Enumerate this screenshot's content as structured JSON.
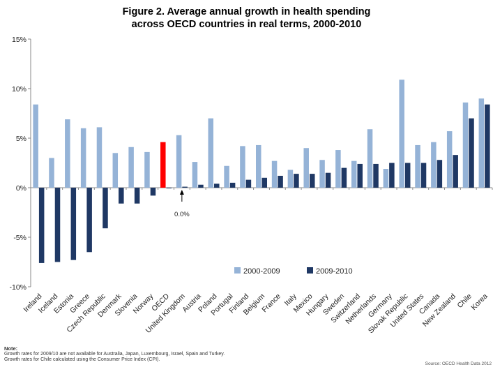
{
  "title_line1": "Figure 2. Average annual growth in health spending",
  "title_line2": "across OECD countries in real terms, 2000-2010",
  "notes": {
    "heading": "Note:",
    "line1": "Growth rates for 2009/10 are not available for Australia, Japan, Luxembourg, Israel, Spain and Turkey.",
    "line2": "Growth rates for Chile calculated using the Consumer Price Index (CPI)."
  },
  "source": "Source: OECD Health Data 2012",
  "chart_data": {
    "type": "bar",
    "y_ticks": [
      "15%",
      "10%",
      "5%",
      "0%",
      "-5%",
      "-10%"
    ],
    "ylim": [
      -10,
      15
    ],
    "grid": false,
    "legend_position": "bottom-right",
    "annotation": "0.0%",
    "highlight_category": "OECD",
    "colors": {
      "series1": "#95b3d7",
      "series2": "#1f3864",
      "highlight": "#ff0000"
    },
    "categories": [
      "Ireland",
      "Iceland",
      "Estonia",
      "Greece",
      "Czech Republic",
      "Denmark",
      "Slovenia",
      "Norway",
      "OECD",
      "United Kingdom",
      "Austria",
      "Poland",
      "Portugal",
      "Finland",
      "Belgium",
      "France",
      "Italy",
      "Mexico",
      "Hungary",
      "Sweden",
      "Switzerland",
      "Netherlands",
      "Germany",
      "Slovak Republic",
      "United States",
      "Canada",
      "New Zealand",
      "Chile",
      "Korea"
    ],
    "series": [
      {
        "name": "2000-2009",
        "values": [
          8.4,
          3.0,
          6.9,
          6.0,
          6.1,
          3.5,
          4.1,
          3.6,
          4.6,
          5.3,
          2.6,
          7.0,
          2.2,
          4.2,
          4.3,
          2.7,
          1.8,
          4.0,
          2.8,
          3.8,
          2.7,
          5.9,
          1.9,
          10.9,
          4.3,
          4.6,
          5.7,
          8.6,
          9.0
        ]
      },
      {
        "name": "2009-2010",
        "values": [
          -7.6,
          -7.5,
          -7.3,
          -6.5,
          -4.1,
          -1.6,
          -1.6,
          -0.8,
          0.0,
          0.1,
          0.3,
          0.4,
          0.5,
          0.8,
          1.0,
          1.2,
          1.4,
          1.4,
          1.5,
          2.0,
          2.4,
          2.4,
          2.5,
          2.5,
          2.5,
          2.8,
          3.3,
          7.0,
          8.4
        ]
      }
    ]
  }
}
